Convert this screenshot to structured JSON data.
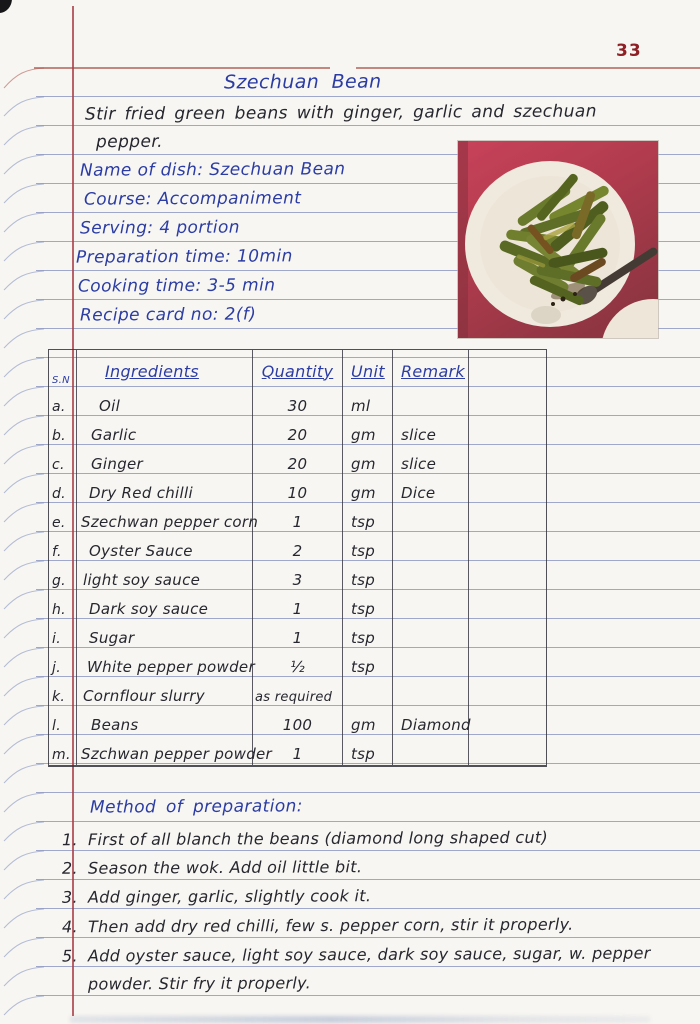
{
  "colors": {
    "ink_blue": "#2b3da4",
    "ink_dark": "#26272f",
    "rule_blue": "#6e82b8",
    "margin_red": "#a83c45",
    "top_rule_red": "#b06158",
    "page_num_red": "#8e2026",
    "photo_red": "#bc4152",
    "plate_white": "#f0e9dd",
    "paper": "#f8f6f2"
  },
  "page": {
    "number": "33"
  },
  "recipe": {
    "title": "Szechuan Bean",
    "intro_line1": "Stir fried green beans with ginger, garlic and szechuan",
    "intro_line2": "pepper.",
    "meta": [
      "Name of dish: Szechuan Bean",
      "Course: Accompaniment",
      "Serving: 4 portion",
      "Preparation time: 10min",
      "Cooking time: 3-5 min",
      "Recipe card no: 2(f)"
    ]
  },
  "photo": {
    "description": "Stir fried szechuan green beans served on a white plate with a spoon, red background"
  },
  "table": {
    "headers": [
      "S.N",
      "Ingredients",
      "Quantity",
      "Unit",
      "Remark"
    ],
    "rows": [
      {
        "sn": "a.",
        "ingredient": "Oil",
        "qty": "30",
        "unit": "ml",
        "remark": ""
      },
      {
        "sn": "b.",
        "ingredient": "Garlic",
        "qty": "20",
        "unit": "gm",
        "remark": "slice"
      },
      {
        "sn": "c.",
        "ingredient": "Ginger",
        "qty": "20",
        "unit": "gm",
        "remark": "slice"
      },
      {
        "sn": "d.",
        "ingredient": "Dry Red chilli",
        "qty": "10",
        "unit": "gm",
        "remark": "Dice"
      },
      {
        "sn": "e.",
        "ingredient": "Szechwan pepper corn",
        "qty": "1",
        "unit": "tsp",
        "remark": ""
      },
      {
        "sn": "f.",
        "ingredient": "Oyster Sauce",
        "qty": "2",
        "unit": "tsp",
        "remark": ""
      },
      {
        "sn": "g.",
        "ingredient": "light soy sauce",
        "qty": "3",
        "unit": "tsp",
        "remark": ""
      },
      {
        "sn": "h.",
        "ingredient": "Dark soy sauce",
        "qty": "1",
        "unit": "tsp",
        "remark": ""
      },
      {
        "sn": "i.",
        "ingredient": "Sugar",
        "qty": "1",
        "unit": "tsp",
        "remark": ""
      },
      {
        "sn": "j.",
        "ingredient": "White pepper powder",
        "qty": "½",
        "unit": "tsp",
        "remark": ""
      },
      {
        "sn": "k.",
        "ingredient": "Cornflour slurry",
        "qty": "as required",
        "unit": "",
        "remark": ""
      },
      {
        "sn": "l.",
        "ingredient": "Beans",
        "qty": "100",
        "unit": "gm",
        "remark": "Diamond"
      },
      {
        "sn": "m.",
        "ingredient": "Szchwan pepper powder",
        "qty": "1",
        "unit": "tsp",
        "remark": ""
      }
    ]
  },
  "method": {
    "heading": "Method of preparation:",
    "steps": [
      {
        "num": "1.",
        "text": "First of all blanch the beans (diamond long shaped cut)"
      },
      {
        "num": "2.",
        "text": "Season the wok. Add oil little bit."
      },
      {
        "num": "3.",
        "text": "Add ginger, garlic, slightly cook it."
      },
      {
        "num": "4.",
        "text": "Then add dry red chilli, few s. pepper corn, stir it properly."
      },
      {
        "num": "5.",
        "text": "Add oyster sauce, light soy sauce, dark soy sauce, sugar, w. pepper"
      },
      {
        "num": "",
        "text": "powder. Stir fry it properly."
      }
    ]
  }
}
